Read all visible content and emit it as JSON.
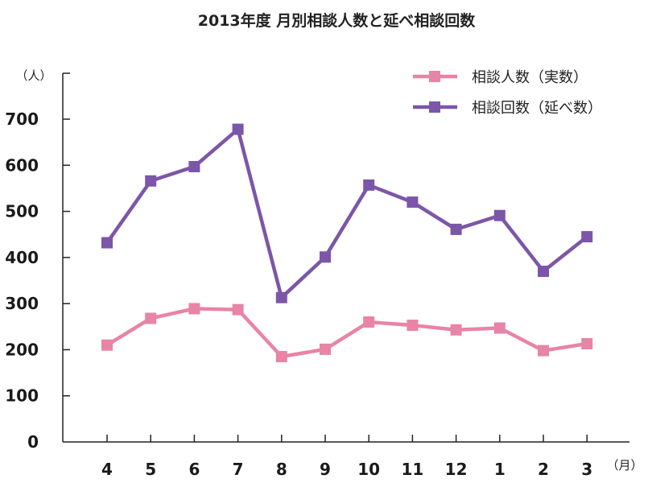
{
  "chart_data": {
    "type": "line",
    "title": "2013年度 月別相談人数と延べ相談回数",
    "y_unit": "（人）",
    "x_unit": "（月）",
    "categories": [
      "4",
      "5",
      "6",
      "7",
      "8",
      "9",
      "10",
      "11",
      "12",
      "1",
      "2",
      "3"
    ],
    "ylim": [
      0,
      700
    ],
    "yticks": [
      0,
      100,
      200,
      300,
      400,
      500,
      600,
      700
    ],
    "grid": false,
    "legend_position": "top-right",
    "series": [
      {
        "name": "相談人数（実数）",
        "color": "#e884a6",
        "values": [
          210,
          268,
          289,
          287,
          185,
          201,
          260,
          253,
          243,
          247,
          198,
          213
        ]
      },
      {
        "name": "相談回数（延べ数）",
        "color": "#7c56a8",
        "values": [
          432,
          566,
          597,
          678,
          313,
          401,
          557,
          520,
          461,
          491,
          370,
          445
        ]
      }
    ]
  }
}
